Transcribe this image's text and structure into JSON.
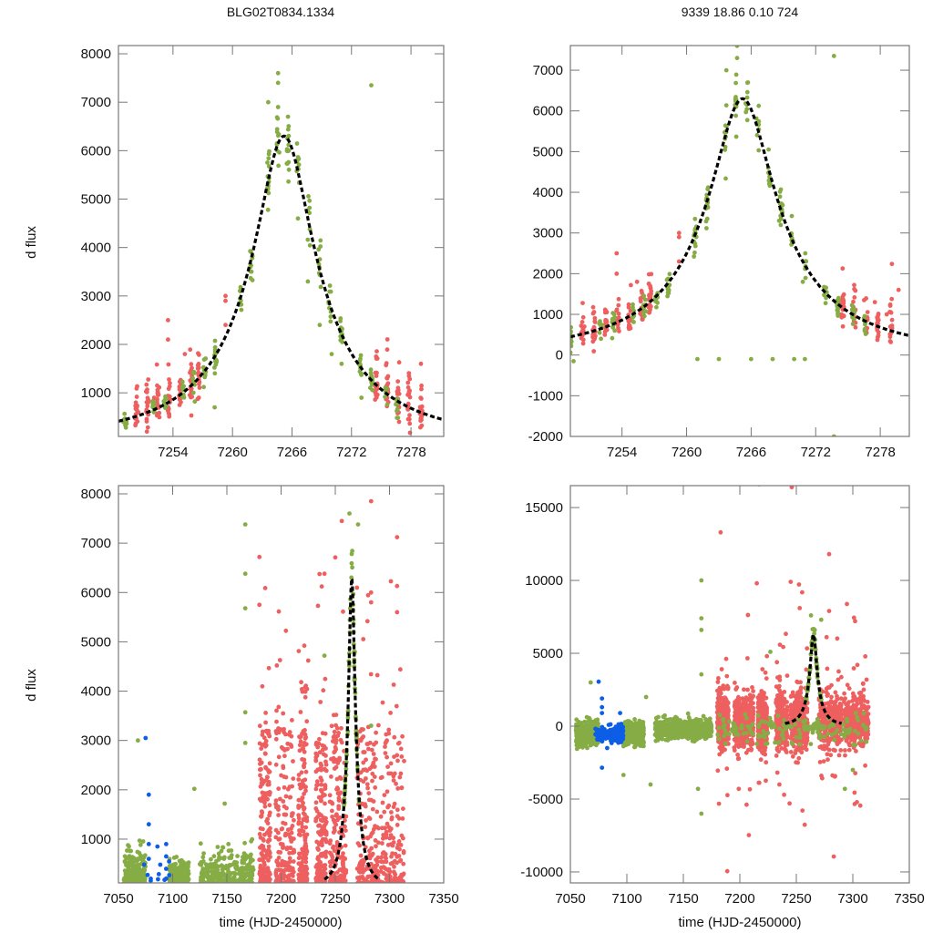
{
  "figure": {
    "ylabel": "d flux",
    "xlabel": "time (HJD-2450000)"
  },
  "colors": {
    "series_a": "#ee5f5f",
    "series_b": "#86ad45",
    "series_c": "#0d5ee6",
    "model": "#000000",
    "frame": "#777777"
  },
  "model": {
    "t0": 7265.2,
    "peak_dflux": 6300,
    "width_days": 3.2,
    "baseline": 60
  },
  "chart_data": [
    {
      "id": "top-left",
      "type": "scatter",
      "title": "BLG02T0834.1334",
      "xlabel": "",
      "ylabel": "d flux",
      "xlim": [
        7248.5,
        7281.3
      ],
      "ylim": [
        100,
        8170
      ],
      "xticks": [
        7254,
        7260,
        7266,
        7272,
        7278
      ],
      "yticks": [
        1000,
        2000,
        3000,
        4000,
        5000,
        6000,
        7000,
        8000
      ],
      "grid": false,
      "series": [
        {
          "name": "red",
          "points": [
            [
              7250.5,
              600
            ],
            [
              7252.1,
              900
            ],
            [
              7253.5,
              2500
            ],
            [
              7253.5,
              2100
            ],
            [
              7255.2,
              1800
            ],
            [
              7256.6,
              900
            ],
            [
              7259.3,
              3000
            ],
            [
              7259.3,
              2900
            ],
            [
              7259.3,
              2400
            ],
            [
              7274.5,
              1350
            ],
            [
              7275.6,
              1300
            ],
            [
              7276.7,
              1100
            ],
            [
              7277.8,
              1000
            ],
            [
              7279.0,
              1600
            ]
          ]
        },
        {
          "name": "green",
          "points": [
            [
              7249.0,
              400
            ],
            [
              7256.0,
              1300
            ],
            [
              7258.2,
              700
            ],
            [
              7260.8,
              3100
            ],
            [
              7261.8,
              3600
            ],
            [
              7263.6,
              7000
            ],
            [
              7264.6,
              7600
            ],
            [
              7264.6,
              7400
            ],
            [
              7264.6,
              6900
            ],
            [
              7265.6,
              6700
            ],
            [
              7266.6,
              4600
            ],
            [
              7267.6,
              3300
            ],
            [
              7268.8,
              2400
            ],
            [
              7270.0,
              1800
            ],
            [
              7271.0,
              1600
            ],
            [
              7273.0,
              900
            ],
            [
              7274.0,
              7350
            ]
          ]
        }
      ],
      "model_curve": true
    },
    {
      "id": "top-right",
      "type": "scatter",
      "title": "9339  18.86  0.10  724",
      "xlabel": "",
      "ylabel": "",
      "xlim": [
        7249.2,
        7280.7
      ],
      "ylim": [
        -2000,
        7606
      ],
      "xticks": [
        7254,
        7260,
        7266,
        7272,
        7278
      ],
      "yticks": [
        -2000,
        -1000,
        0,
        1000,
        2000,
        3000,
        4000,
        5000,
        6000,
        7000
      ],
      "grid": false,
      "series": [
        {
          "name": "red",
          "points": [
            [
              7250.5,
              700
            ],
            [
              7253.5,
              2500
            ],
            [
              7253.5,
              2000
            ],
            [
              7255.4,
              1800
            ],
            [
              7259.3,
              3000
            ],
            [
              7259.3,
              2900
            ],
            [
              7259.3,
              2300
            ],
            [
              7276.5,
              1350
            ],
            [
              7277.5,
              1300
            ],
            [
              7278.6,
              1000
            ],
            [
              7279.7,
              1600
            ]
          ]
        },
        {
          "name": "green",
          "points": [
            [
              7249.5,
              -150
            ],
            [
              7260.8,
              3100
            ],
            [
              7261.8,
              3600
            ],
            [
              7263.7,
              7000
            ],
            [
              7264.7,
              7600
            ],
            [
              7264.7,
              7300
            ],
            [
              7265.7,
              6700
            ],
            [
              7267.6,
              4600
            ],
            [
              7268.6,
              3300
            ],
            [
              7270.8,
              1800
            ],
            [
              7273.7,
              7350
            ],
            [
              7273.7,
              -2000
            ],
            [
              7261.0,
              -100
            ],
            [
              7263.0,
              -100
            ],
            [
              7266.0,
              -100
            ],
            [
              7268.0,
              -100
            ],
            [
              7270.0,
              -100
            ],
            [
              7271.0,
              -100
            ]
          ]
        }
      ],
      "model_curve": true
    },
    {
      "id": "bottom-left",
      "type": "scatter",
      "title": "",
      "xlabel": "time (HJD-2450000)",
      "ylabel": "d flux",
      "xlim": [
        7050,
        7350
      ],
      "ylim": [
        113,
        8166
      ],
      "xticks": [
        7050,
        7100,
        7150,
        7200,
        7250,
        7300,
        7350
      ],
      "yticks": [
        1000,
        2000,
        3000,
        4000,
        5000,
        6000,
        7000,
        8000
      ],
      "grid": false,
      "series": [
        {
          "name": "blue",
          "points": [
            [
              7075,
              3050
            ],
            [
              7078,
              1900
            ],
            [
              7078,
              1300
            ],
            [
              7078,
              900
            ],
            [
              7078,
              600
            ],
            [
              7086,
              850
            ],
            [
              7094,
              900
            ],
            [
              7094,
              650
            ],
            [
              7094,
              400
            ],
            [
              7094,
              200
            ]
          ]
        },
        {
          "name": "green",
          "points": [
            [
              7068,
              3000
            ],
            [
              7120,
              2020
            ],
            [
              7148,
              1720
            ],
            [
              7167,
              7380
            ],
            [
              7167,
              6380
            ],
            [
              7167,
              5680
            ],
            [
              7167,
              3570
            ],
            [
              7167,
              2950
            ],
            [
              7240,
              4720
            ],
            [
              7263,
              7600
            ],
            [
              7271,
              7380
            ],
            [
              7283,
              3300
            ]
          ]
        },
        {
          "name": "red",
          "points": [
            [
              7180,
              6720
            ],
            [
              7180,
              5750
            ],
            [
              7225,
              4620
            ],
            [
              7240,
              6380
            ],
            [
              7256,
              7450
            ],
            [
              7250,
              6710
            ],
            [
              7283,
              7850
            ],
            [
              7283,
              6000
            ],
            [
              7283,
              5800
            ],
            [
              7307,
              7120
            ],
            [
              7307,
              6130
            ],
            [
              7307,
              5600
            ],
            [
              7310,
              4440
            ]
          ]
        }
      ],
      "model_curve": true
    },
    {
      "id": "bottom-right",
      "type": "scatter",
      "title": "",
      "xlabel": "time (HJD-2450000)",
      "ylabel": "",
      "xlim": [
        7050,
        7350
      ],
      "ylim": [
        -10752,
        16504
      ],
      "xticks": [
        7050,
        7100,
        7150,
        7200,
        7250,
        7300,
        7350
      ],
      "yticks": [
        -10000,
        -5000,
        0,
        5000,
        10000,
        15000
      ],
      "grid": false,
      "series": [
        {
          "name": "blue",
          "points": [
            [
              7075,
              3050
            ],
            [
              7078,
              1900
            ],
            [
              7078,
              1300
            ],
            [
              7078,
              900
            ],
            [
              7078,
              -2850
            ],
            [
              7094,
              900
            ]
          ]
        },
        {
          "name": "green",
          "points": [
            [
              7068,
              3000
            ],
            [
              7097,
              -3350
            ],
            [
              7117,
              2000
            ],
            [
              7121,
              -4000
            ],
            [
              7166,
              10000
            ],
            [
              7166,
              7400
            ],
            [
              7166,
              6600
            ],
            [
              7166,
              3550
            ],
            [
              7163,
              -4300
            ],
            [
              7166,
              -6000
            ],
            [
              7227,
              5100
            ],
            [
              7263,
              7600
            ],
            [
              7272,
              7300
            ],
            [
              7293,
              -4300
            ],
            [
              7300,
              -3000
            ]
          ]
        },
        {
          "name": "red",
          "points": [
            [
              7183,
              13300
            ],
            [
              7217,
              16600
            ],
            [
              7246,
              16400
            ],
            [
              7215,
              9800
            ],
            [
              7245,
              9900
            ],
            [
              7253,
              8100
            ],
            [
              7279,
              11800
            ],
            [
              7279,
              7900
            ],
            [
              7302,
              7200
            ],
            [
              7304,
              4200
            ],
            [
              7244,
              -5300
            ],
            [
              7235,
              -4000
            ],
            [
              7199,
              -4300
            ]
          ]
        }
      ],
      "model_curve": true
    }
  ]
}
